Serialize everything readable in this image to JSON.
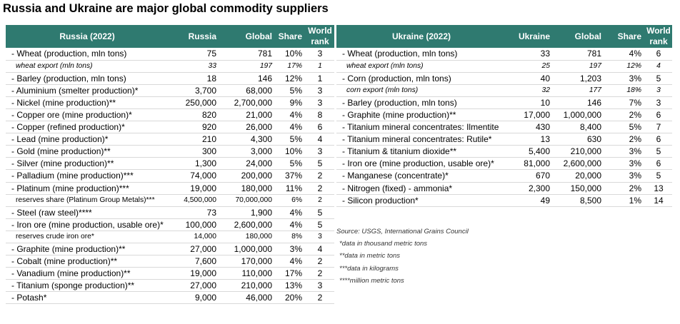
{
  "title": "Russia and Ukraine are major global commodity suppliers",
  "russia": {
    "headers": {
      "label": "Russia (2022)",
      "country": "Russia",
      "global": "Global",
      "share": "Share",
      "rank": "World rank"
    },
    "rows": [
      {
        "label": "- Wheat (production, mln tons)",
        "country": "75",
        "global": "781",
        "share": "10%",
        "rank": "3",
        "style": "main"
      },
      {
        "label": "wheat export (mln tons)",
        "country": "33",
        "global": "197",
        "share": "17%",
        "rank": "1",
        "style": "sub"
      },
      {
        "label": "- Barley (production, mln tons)",
        "country": "18",
        "global": "146",
        "share": "12%",
        "rank": "1",
        "style": "main"
      },
      {
        "label": "- Aluminium (smelter production)*",
        "country": "3,700",
        "global": "68,000",
        "share": "5%",
        "rank": "3",
        "style": "main"
      },
      {
        "label": "- Nickel (mine production)**",
        "country": "250,000",
        "global": "2,700,000",
        "share": "9%",
        "rank": "3",
        "style": "main"
      },
      {
        "label": "- Copper ore (mine production)*",
        "country": "820",
        "global": "21,000",
        "share": "4%",
        "rank": "8",
        "style": "main"
      },
      {
        "label": "- Copper (refined production)*",
        "country": "920",
        "global": "26,000",
        "share": "4%",
        "rank": "6",
        "style": "main"
      },
      {
        "label": "- Lead (mine production)*",
        "country": "210",
        "global": "4,300",
        "share": "5%",
        "rank": "4",
        "style": "main"
      },
      {
        "label": "- Gold (mine production)**",
        "country": "300",
        "global": "3,000",
        "share": "10%",
        "rank": "3",
        "style": "main"
      },
      {
        "label": "- Silver (mine production)**",
        "country": "1,300",
        "global": "24,000",
        "share": "5%",
        "rank": "5",
        "style": "main"
      },
      {
        "label": "- Palladium (mine production)***",
        "country": "74,000",
        "global": "200,000",
        "share": "37%",
        "rank": "2",
        "style": "main"
      },
      {
        "label": "- Platinum (mine production)***",
        "country": "19,000",
        "global": "180,000",
        "share": "11%",
        "rank": "2",
        "style": "main"
      },
      {
        "label": "reserves share (Platinum Group Metals)***",
        "country": "4,500,000",
        "global": "70,000,000",
        "share": "6%",
        "rank": "2",
        "style": "sub2"
      },
      {
        "label": "- Steel (raw steel)****",
        "country": "73",
        "global": "1,900",
        "share": "4%",
        "rank": "5",
        "style": "main"
      },
      {
        "label": "- Iron ore (mine production, usable ore)*",
        "country": "100,000",
        "global": "2,600,000",
        "share": "4%",
        "rank": "5",
        "style": "main"
      },
      {
        "label": "reserves crude iron ore*",
        "country": "14,000",
        "global": "180,000",
        "share": "8%",
        "rank": "3",
        "style": "sub2"
      },
      {
        "label": "- Graphite (mine production)**",
        "country": "27,000",
        "global": "1,000,000",
        "share": "3%",
        "rank": "4",
        "style": "main"
      },
      {
        "label": "- Cobalt (mine production)**",
        "country": "7,600",
        "global": "170,000",
        "share": "4%",
        "rank": "2",
        "style": "main"
      },
      {
        "label": "- Vanadium (mine production)**",
        "country": "19,000",
        "global": "110,000",
        "share": "17%",
        "rank": "2",
        "style": "main"
      },
      {
        "label": "- Titanium (sponge production)**",
        "country": "27,000",
        "global": "210,000",
        "share": "13%",
        "rank": "3",
        "style": "main"
      },
      {
        "label": "- Potash*",
        "country": "9,000",
        "global": "46,000",
        "share": "20%",
        "rank": "2",
        "style": "main"
      }
    ]
  },
  "ukraine": {
    "headers": {
      "label": "Ukraine (2022)",
      "country": "Ukraine",
      "global": "Global",
      "share": "Share",
      "rank": "World rank"
    },
    "rows": [
      {
        "label": "- Wheat (production, mln tons)",
        "country": "33",
        "global": "781",
        "share": "4%",
        "rank": "6",
        "style": "main"
      },
      {
        "label": "wheat export (mln tons)",
        "country": "25",
        "global": "197",
        "share": "12%",
        "rank": "4",
        "style": "sub"
      },
      {
        "label": "- Corn (production, mln tons)",
        "country": "40",
        "global": "1,203",
        "share": "3%",
        "rank": "5",
        "style": "main"
      },
      {
        "label": "corn export (mln tons)",
        "country": "32",
        "global": "177",
        "share": "18%",
        "rank": "3",
        "style": "sub"
      },
      {
        "label": "- Barley (production, mln tons)",
        "country": "10",
        "global": "146",
        "share": "7%",
        "rank": "3",
        "style": "main"
      },
      {
        "label": "- Graphite (mine production)**",
        "country": "17,000",
        "global": "1,000,000",
        "share": "2%",
        "rank": "6",
        "style": "main"
      },
      {
        "label": "- Titanium mineral concentrates: Ilmentite",
        "country": "430",
        "global": "8,400",
        "share": "5%",
        "rank": "7",
        "style": "main"
      },
      {
        "label": "- Titanium mineral concentrates: Rutile*",
        "country": "13",
        "global": "630",
        "share": "2%",
        "rank": "6",
        "style": "main"
      },
      {
        "label": "- Titanium & titanium dioxide**",
        "country": "5,400",
        "global": "210,000",
        "share": "3%",
        "rank": "5",
        "style": "main"
      },
      {
        "label": "- Iron ore (mine production, usable ore)*",
        "country": "81,000",
        "global": "2,600,000",
        "share": "3%",
        "rank": "6",
        "style": "main"
      },
      {
        "label": "- Manganese (concentrate)*",
        "country": "670",
        "global": "20,000",
        "share": "3%",
        "rank": "5",
        "style": "main"
      },
      {
        "label": "- Nitrogen (fixed) - ammonia*",
        "country": "2,300",
        "global": "150,000",
        "share": "2%",
        "rank": "13",
        "style": "main"
      },
      {
        "label": "- Silicon production*",
        "country": "49",
        "global": "8,500",
        "share": "1%",
        "rank": "14",
        "style": "main"
      }
    ]
  },
  "notes": {
    "source": "Source: USGS, International Grains Council",
    "footnotes": [
      "*data in thousand metric tons",
      "**data in metric tons",
      "***data in kilograms",
      "****million metric tons"
    ]
  }
}
